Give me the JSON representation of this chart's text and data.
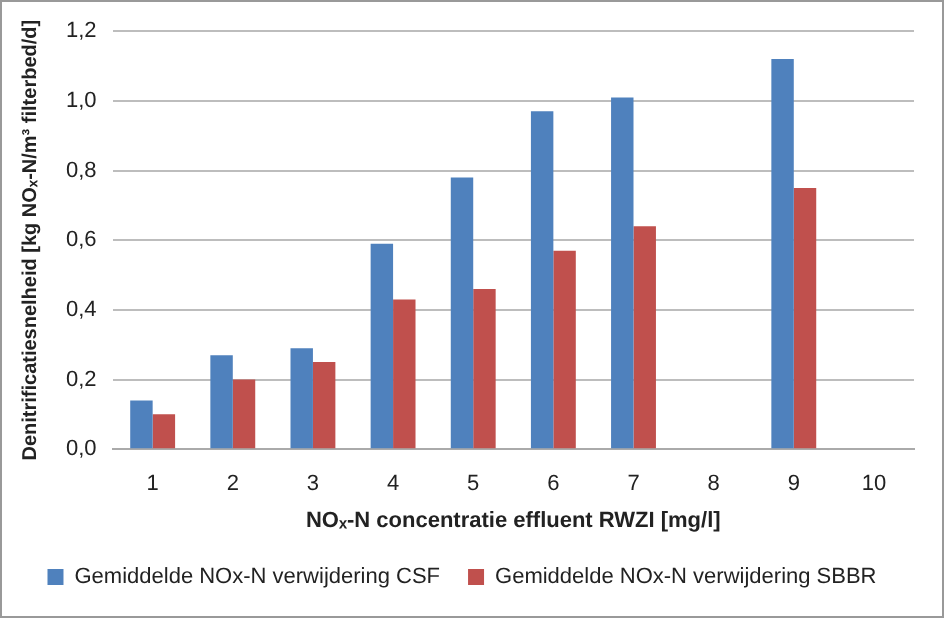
{
  "chart_data": {
    "type": "bar",
    "xlabel": "NOₓ-N concentratie effluent RWZI [mg/l]",
    "ylabel": "Denitrificatiesnelheid [kg NOₓ-N/m³ filterbed/d]",
    "categories": [
      "1",
      "2",
      "3",
      "4",
      "5",
      "6",
      "7",
      "8",
      "9",
      "10"
    ],
    "series": [
      {
        "name": "Gemiddelde NOx-N verwijdering CSF",
        "color": "#4f81bd",
        "values": [
          0.14,
          0.27,
          0.29,
          0.59,
          0.78,
          0.97,
          1.01,
          null,
          1.12,
          null
        ]
      },
      {
        "name": "Gemiddelde NOx-N verwijdering SBBR",
        "color": "#c0504d",
        "values": [
          0.1,
          0.2,
          0.25,
          0.43,
          0.46,
          0.57,
          0.64,
          null,
          0.75,
          null
        ]
      }
    ],
    "ylim": [
      0,
      1.2
    ],
    "yticks": [
      {
        "value": 0,
        "label": "0,0"
      },
      {
        "value": 0.2,
        "label": "0,2"
      },
      {
        "value": 0.4,
        "label": "0,4"
      },
      {
        "value": 0.6,
        "label": "0,6"
      },
      {
        "value": 0.8,
        "label": "0,8"
      },
      {
        "value": 1,
        "label": "1,0"
      },
      {
        "value": 1.2,
        "label": "1,2"
      }
    ],
    "grid": "y",
    "legend": "bottom"
  }
}
